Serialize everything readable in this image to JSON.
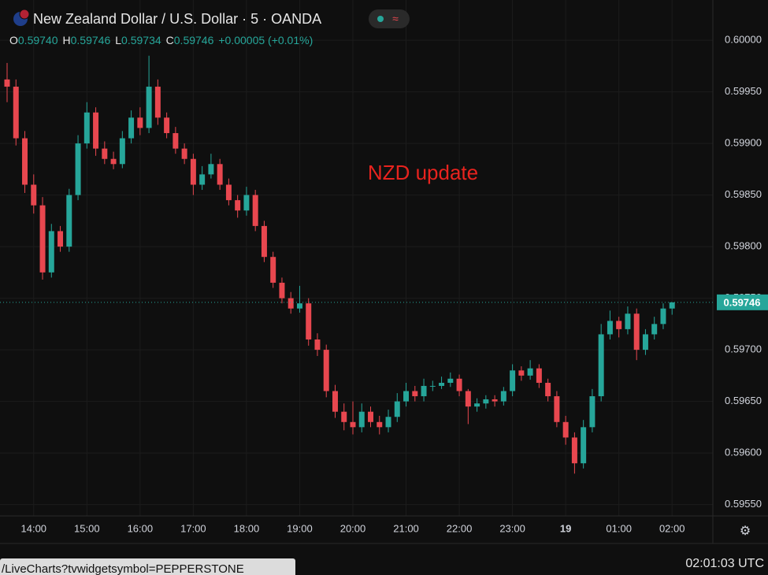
{
  "header": {
    "title": "New Zealand Dollar / U.S. Dollar · 5 · OANDA",
    "ohlc": [
      {
        "label": "O",
        "value": "0.59740"
      },
      {
        "label": "H",
        "value": "0.59746"
      },
      {
        "label": "L",
        "value": "0.59734"
      },
      {
        "label": "C",
        "value": "0.59746"
      }
    ],
    "change": "+0.00005 (+0.01%)"
  },
  "clock": "02:01:03 UTC",
  "status_url": "/LiveCharts?tvwidgetsymbol=PEPPERSTONE",
  "chart_data": {
    "type": "candlestick",
    "annotation": "NZD update",
    "up_color": "#26a69a",
    "down_color": "#e8474f",
    "open": [
      0.59962,
      0.59955,
      0.59905,
      0.5986,
      0.5984,
      0.59775,
      0.59815,
      0.598,
      0.5985,
      0.599,
      0.5993,
      0.59895,
      0.59885,
      0.5988,
      0.59905,
      0.59925,
      0.59915,
      0.59955,
      0.59925,
      0.5991,
      0.59895,
      0.59885,
      0.5986,
      0.5987,
      0.5988,
      0.5986,
      0.59845,
      0.59835,
      0.5985,
      0.5982,
      0.5979,
      0.59765,
      0.5975,
      0.5974,
      0.59745,
      0.5971,
      0.597,
      0.5966,
      0.5964,
      0.5963,
      0.59625,
      0.5964,
      0.5963,
      0.59625,
      0.59635,
      0.5965,
      0.5966,
      0.59655,
      0.59665,
      0.59665,
      0.59668,
      0.59672,
      0.5966,
      0.59645,
      0.59648,
      0.59652,
      0.5965,
      0.5966,
      0.5968,
      0.59675,
      0.59682,
      0.59668,
      0.59655,
      0.5963,
      0.59615,
      0.5959,
      0.59625,
      0.59655,
      0.59715,
      0.59728,
      0.5972,
      0.59735,
      0.597,
      0.59715,
      0.59725,
      0.5974
    ],
    "high": [
      0.59978,
      0.59962,
      0.59912,
      0.5987,
      0.59848,
      0.59822,
      0.5982,
      0.59856,
      0.59908,
      0.5994,
      0.59935,
      0.59902,
      0.59892,
      0.59912,
      0.59932,
      0.59935,
      0.59985,
      0.59962,
      0.5993,
      0.59916,
      0.599,
      0.5989,
      0.59878,
      0.5989,
      0.59885,
      0.59866,
      0.5985,
      0.59858,
      0.59855,
      0.59825,
      0.59795,
      0.5977,
      0.59756,
      0.59762,
      0.5975,
      0.59716,
      0.59705,
      0.59666,
      0.59648,
      0.5965,
      0.59648,
      0.59645,
      0.59636,
      0.59642,
      0.59658,
      0.59668,
      0.59665,
      0.59672,
      0.5967,
      0.59674,
      0.59678,
      0.59676,
      0.59662,
      0.59653,
      0.59656,
      0.59656,
      0.59664,
      0.59686,
      0.59684,
      0.5969,
      0.59686,
      0.59672,
      0.5966,
      0.59636,
      0.5962,
      0.59632,
      0.59662,
      0.59725,
      0.59738,
      0.59732,
      0.59742,
      0.5974,
      0.5972,
      0.59732,
      0.59745,
      0.59746
    ],
    "low": [
      0.5994,
      0.59898,
      0.59852,
      0.59832,
      0.59768,
      0.5977,
      0.59795,
      0.59795,
      0.59845,
      0.59895,
      0.59888,
      0.5988,
      0.59875,
      0.59876,
      0.599,
      0.59908,
      0.5991,
      0.59918,
      0.59905,
      0.5989,
      0.5988,
      0.5985,
      0.59855,
      0.59866,
      0.59855,
      0.5984,
      0.59828,
      0.5983,
      0.59815,
      0.59785,
      0.5976,
      0.59745,
      0.59735,
      0.59736,
      0.59704,
      0.59694,
      0.59654,
      0.59634,
      0.59622,
      0.59618,
      0.5962,
      0.59625,
      0.59618,
      0.5962,
      0.5963,
      0.59645,
      0.5965,
      0.5965,
      0.5966,
      0.59662,
      0.59664,
      0.59655,
      0.59628,
      0.5964,
      0.59643,
      0.59645,
      0.59646,
      0.59655,
      0.5967,
      0.59671,
      0.59663,
      0.5965,
      0.59625,
      0.59608,
      0.5958,
      0.59585,
      0.5962,
      0.5965,
      0.5971,
      0.59712,
      0.59715,
      0.5969,
      0.59695,
      0.5971,
      0.5972,
      0.59734
    ],
    "close": [
      0.59955,
      0.59905,
      0.5986,
      0.5984,
      0.59775,
      0.59815,
      0.598,
      0.5985,
      0.599,
      0.5993,
      0.59895,
      0.59885,
      0.5988,
      0.59905,
      0.59925,
      0.59915,
      0.59955,
      0.59925,
      0.5991,
      0.59895,
      0.59885,
      0.5986,
      0.5987,
      0.5988,
      0.5986,
      0.59845,
      0.59835,
      0.5985,
      0.5982,
      0.5979,
      0.59765,
      0.5975,
      0.5974,
      0.59745,
      0.5971,
      0.597,
      0.5966,
      0.5964,
      0.5963,
      0.59625,
      0.5964,
      0.5963,
      0.59625,
      0.59635,
      0.5965,
      0.5966,
      0.59655,
      0.59665,
      0.59665,
      0.59668,
      0.59672,
      0.5966,
      0.59645,
      0.59648,
      0.59652,
      0.5965,
      0.5966,
      0.5968,
      0.59675,
      0.59682,
      0.59668,
      0.59655,
      0.5963,
      0.59615,
      0.5959,
      0.59625,
      0.59655,
      0.59715,
      0.59728,
      0.5972,
      0.59735,
      0.597,
      0.59715,
      0.59725,
      0.5974,
      0.59746
    ],
    "last_label": "0.59746",
    "xlim": [
      -0.8,
      79.6
    ],
    "xticks": [
      {
        "value": 3,
        "label": "14:00"
      },
      {
        "value": 9,
        "label": "15:00"
      },
      {
        "value": 15,
        "label": "16:00"
      },
      {
        "value": 21,
        "label": "17:00"
      },
      {
        "value": 27,
        "label": "18:00"
      },
      {
        "value": 33,
        "label": "19:00"
      },
      {
        "value": 39,
        "label": "20:00"
      },
      {
        "value": 45,
        "label": "21:00"
      },
      {
        "value": 51,
        "label": "22:00"
      },
      {
        "value": 57,
        "label": "23:00"
      },
      {
        "value": 63,
        "label": "19"
      },
      {
        "value": 69,
        "label": "01:00"
      },
      {
        "value": 75,
        "label": "02:00"
      }
    ],
    "ylim": [
      0.59539,
      0.60039
    ],
    "yticks": [
      {
        "value": 0.5955,
        "label": "0.59550"
      },
      {
        "value": 0.596,
        "label": "0.59600"
      },
      {
        "value": 0.5965,
        "label": "0.59650"
      },
      {
        "value": 0.597,
        "label": "0.59700"
      },
      {
        "value": 0.5975,
        "label": "0.59750"
      },
      {
        "value": 0.598,
        "label": "0.59800"
      },
      {
        "value": 0.5985,
        "label": "0.59850"
      },
      {
        "value": 0.599,
        "label": "0.59900"
      },
      {
        "value": 0.5995,
        "label": "0.59950"
      },
      {
        "value": 0.6,
        "label": "0.60000"
      }
    ],
    "grid": true
  }
}
